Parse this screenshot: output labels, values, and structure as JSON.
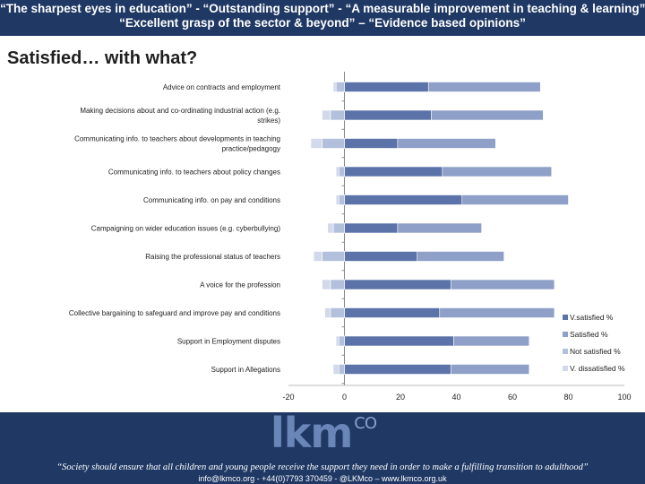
{
  "header": {
    "line1": "“The sharpest eyes in education” - “Outstanding support” - “A measurable improvement in teaching & learning”",
    "line2": "“Excellent grasp of the sector & beyond” – “Evidence based opinions”"
  },
  "title": "Satisfied… with what?",
  "chart_data": {
    "type": "bar",
    "orientation": "horizontal",
    "stacked": "diverging",
    "categories": [
      "Advice on contracts and employment",
      "Making decisions about and co-ordinating industrial action (e.g. strikes)",
      "Communicating info. to teachers about developments in teaching practice/pedagogy",
      "Communicating info. to teachers about policy changes",
      "Communicating info. on pay and conditions",
      "Campaigning on wider education issues (e.g. cyberbullying)",
      "Raising the professional status of teachers",
      "A voice for the profession",
      "Collective bargaining to safeguard and improve pay and conditions",
      "Support in Employment disputes",
      "Support in Allegations"
    ],
    "series": [
      {
        "name": "V.satisfied %",
        "color": "#5b73a8",
        "values": [
          30,
          31,
          19,
          35,
          42,
          19,
          26,
          38,
          34,
          39,
          38
        ]
      },
      {
        "name": "Satisfied %",
        "color": "#8e9fc8",
        "values": [
          40,
          40,
          35,
          39,
          38,
          30,
          31,
          37,
          41,
          27,
          28
        ]
      },
      {
        "name": "Not satisfied %",
        "color": "#b3c0dc",
        "values": [
          -3,
          -5,
          -8,
          -2,
          -2,
          -4,
          -8,
          -5,
          -5,
          -2,
          -2
        ]
      },
      {
        "name": "V. dissatisfied %",
        "color": "#d1d9ea",
        "values": [
          -1,
          -3,
          -4,
          -1,
          -1,
          -2,
          -3,
          -3,
          -2,
          -1,
          -2
        ]
      }
    ],
    "xlim": [
      -20,
      100
    ],
    "xticks": [
      "-20",
      "0",
      "20",
      "40",
      "60",
      "80",
      "100"
    ],
    "xlabel": "",
    "ylabel": "",
    "legend": "right"
  },
  "footer": {
    "logo_text": "lkm",
    "logo_sup": "CO",
    "quote": "“Society should ensure that all children and young people receive the support they need in order to make a fulfilling transition to adulthood”",
    "contact": "info@lkmco.org - +44(0)7793 370459 - @LKMco – www.lkmco.org.uk"
  }
}
